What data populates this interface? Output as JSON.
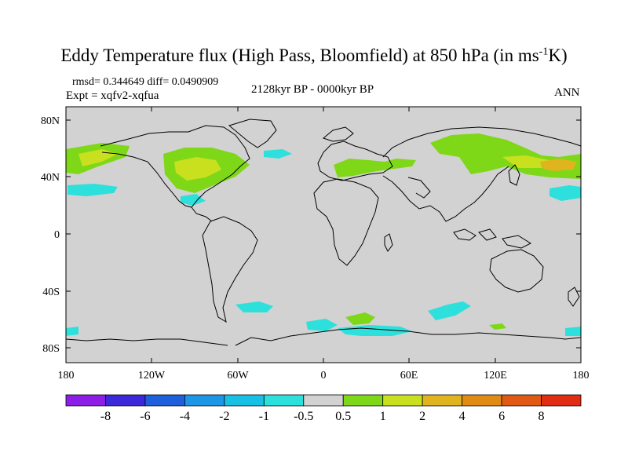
{
  "title": "Eddy Temperature flux (High Pass, Bloomfield) at 850 hPa (in ms",
  "title_sup": "-1",
  "title_end": "K)",
  "stats": {
    "rmsd": "rmsd= 0.344649 diff= 0.0490909",
    "expt": "Expt = xqfv2-xqfua",
    "period": "2128kyr BP - 0000kyr BP",
    "season": "ANN"
  },
  "axes": {
    "y_ticks": [
      "80N",
      "40N",
      "0",
      "40S",
      "80S"
    ],
    "x_ticks": [
      "180",
      "120W",
      "60W",
      "0",
      "60E",
      "120E",
      "180"
    ]
  },
  "colorbar": {
    "labels": [
      "-8",
      "-6",
      "-4",
      "-2",
      "-1",
      "-0.5",
      "0.5",
      "1",
      "2",
      "4",
      "6",
      "8"
    ],
    "colors": [
      "#8c1ee6",
      "#3c28d8",
      "#1e5fdc",
      "#1e96e6",
      "#18c0e6",
      "#2ee0dc",
      "#d2d2d2",
      "#7ed818",
      "#c8e01e",
      "#e0b41e",
      "#e08c14",
      "#e05a14",
      "#e02d14"
    ]
  },
  "map": {
    "land_color": "#d2d2d2",
    "background": "#ffffff"
  }
}
